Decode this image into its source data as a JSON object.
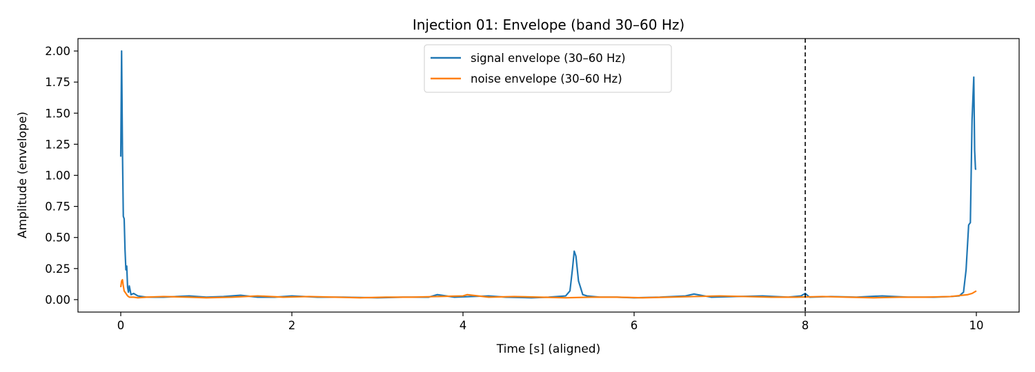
{
  "chart_data": {
    "type": "line",
    "title": "Injection 01: Envelope (band 30–60 Hz)",
    "xlabel": "Time [s] (aligned)",
    "ylabel": "Amplitude (envelope)",
    "xlim": [
      -0.5,
      10.5
    ],
    "ylim": [
      -0.1,
      2.1
    ],
    "xticks": [
      0,
      2,
      4,
      6,
      8,
      10
    ],
    "xtick_labels": [
      "0",
      "2",
      "4",
      "6",
      "8",
      "10"
    ],
    "yticks": [
      0.0,
      0.25,
      0.5,
      0.75,
      1.0,
      1.25,
      1.5,
      1.75,
      2.0
    ],
    "ytick_labels": [
      "0.00",
      "0.25",
      "0.50",
      "0.75",
      "1.00",
      "1.25",
      "1.50",
      "1.75",
      "2.00"
    ],
    "grid": false,
    "legend_position": "upper center",
    "vline": {
      "x": 8,
      "style": "dashed",
      "color": "#000000"
    },
    "series": [
      {
        "name": "signal envelope (30–60 Hz)",
        "color": "#1f77b4",
        "x": [
          0,
          0.01,
          0.02,
          0.03,
          0.04,
          0.05,
          0.06,
          0.07,
          0.08,
          0.09,
          0.1,
          0.12,
          0.15,
          0.2,
          0.3,
          0.5,
          0.8,
          1.0,
          1.2,
          1.4,
          1.6,
          1.8,
          2.0,
          2.3,
          2.6,
          3.0,
          3.3,
          3.6,
          3.7,
          3.9,
          4.1,
          4.3,
          4.5,
          4.8,
          5.0,
          5.2,
          5.25,
          5.28,
          5.3,
          5.32,
          5.35,
          5.4,
          5.45,
          5.6,
          5.8,
          6.0,
          6.3,
          6.6,
          6.7,
          6.9,
          7.2,
          7.5,
          7.8,
          7.95,
          8.0,
          8.05,
          8.3,
          8.6,
          8.9,
          9.2,
          9.5,
          9.7,
          9.8,
          9.85,
          9.88,
          9.91,
          9.93,
          9.95,
          9.97,
          9.98,
          9.99,
          10.0
        ],
        "y": [
          1.15,
          2.0,
          1.2,
          0.67,
          0.65,
          0.4,
          0.24,
          0.27,
          0.1,
          0.06,
          0.11,
          0.04,
          0.05,
          0.03,
          0.02,
          0.02,
          0.03,
          0.02,
          0.025,
          0.035,
          0.02,
          0.02,
          0.03,
          0.02,
          0.02,
          0.015,
          0.02,
          0.02,
          0.04,
          0.02,
          0.025,
          0.03,
          0.02,
          0.015,
          0.02,
          0.03,
          0.07,
          0.25,
          0.39,
          0.35,
          0.15,
          0.04,
          0.03,
          0.02,
          0.02,
          0.015,
          0.02,
          0.03,
          0.045,
          0.02,
          0.025,
          0.03,
          0.02,
          0.03,
          0.05,
          0.02,
          0.025,
          0.02,
          0.03,
          0.02,
          0.02,
          0.025,
          0.03,
          0.06,
          0.24,
          0.6,
          0.62,
          1.45,
          1.79,
          1.2,
          1.05,
          1.05
        ]
      },
      {
        "name": "noise envelope (30–60 Hz)",
        "color": "#ff7f0e",
        "x": [
          0,
          0.01,
          0.02,
          0.03,
          0.04,
          0.06,
          0.08,
          0.1,
          0.15,
          0.2,
          0.3,
          0.5,
          0.8,
          1.0,
          1.3,
          1.6,
          1.9,
          2.2,
          2.5,
          2.8,
          3.1,
          3.4,
          3.7,
          4.0,
          4.05,
          4.3,
          4.6,
          4.9,
          5.2,
          5.5,
          5.8,
          6.1,
          6.4,
          6.7,
          7.0,
          7.3,
          7.6,
          7.9,
          8.2,
          8.5,
          8.8,
          9.1,
          9.4,
          9.7,
          9.9,
          9.95,
          10.0
        ],
        "y": [
          0.1,
          0.15,
          0.16,
          0.11,
          0.07,
          0.05,
          0.03,
          0.02,
          0.02,
          0.015,
          0.02,
          0.025,
          0.02,
          0.015,
          0.02,
          0.03,
          0.02,
          0.025,
          0.02,
          0.015,
          0.02,
          0.02,
          0.025,
          0.03,
          0.04,
          0.02,
          0.025,
          0.02,
          0.015,
          0.02,
          0.02,
          0.015,
          0.02,
          0.025,
          0.03,
          0.025,
          0.02,
          0.02,
          0.025,
          0.02,
          0.015,
          0.02,
          0.02,
          0.025,
          0.04,
          0.05,
          0.07
        ]
      }
    ]
  }
}
